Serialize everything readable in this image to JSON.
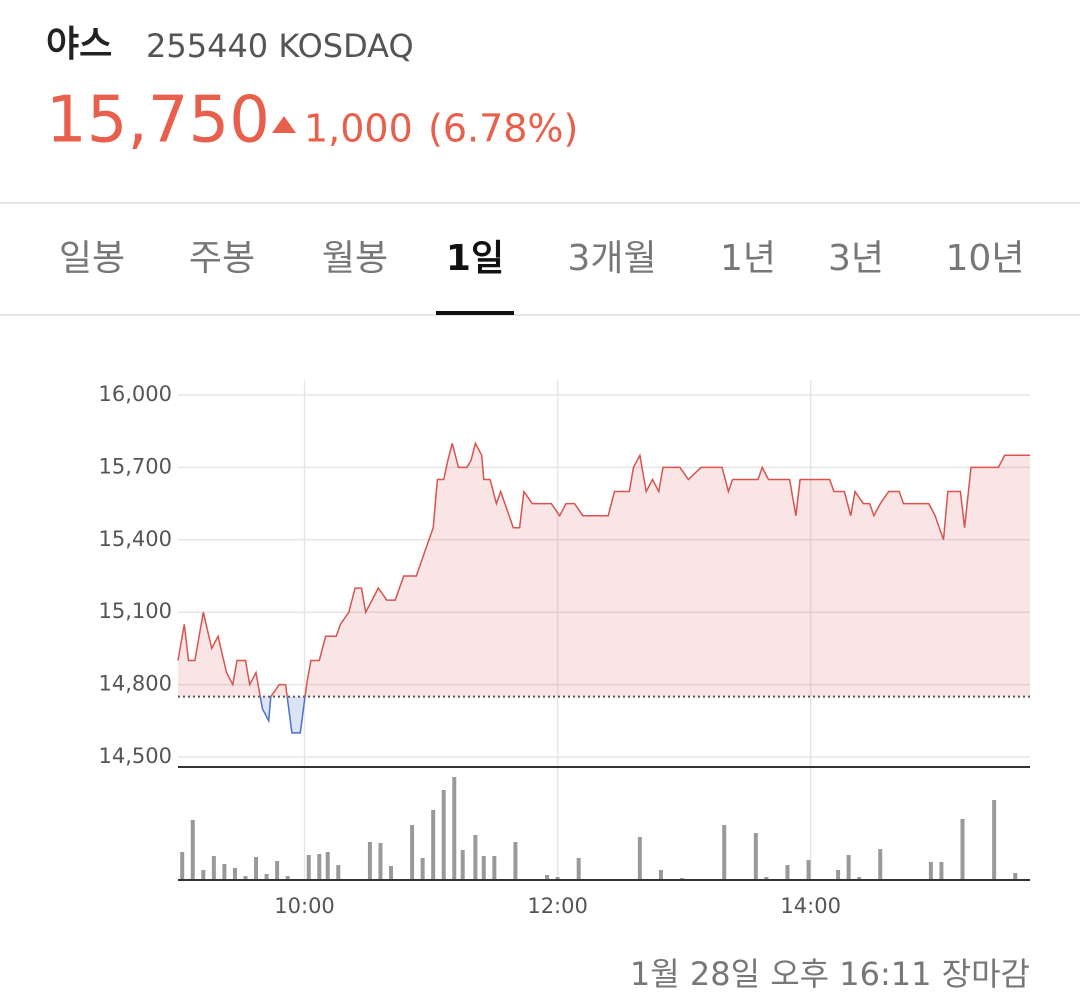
{
  "header": {
    "name": "야스",
    "code": "255440 KOSDAQ",
    "price": "15,750",
    "change": "1,000",
    "change_pct": "(6.78%)"
  },
  "tabs": [
    "일봉",
    "주봉",
    "월봉",
    "1일",
    "3개월",
    "1년",
    "3년",
    "10년"
  ],
  "active_tab": 3,
  "footer": "1월 28일 오후 16:11 장마감",
  "chart_data": [
    {
      "type": "line",
      "xlim": [
        "09:00",
        "15:44"
      ],
      "xticks": [
        "10:00",
        "12:00",
        "14:00"
      ],
      "ylim": [
        14500,
        16000
      ],
      "yticks": [
        {
          "value": 14500,
          "label": "14,500"
        },
        {
          "value": 14800,
          "label": "14,800"
        },
        {
          "value": 15100,
          "label": "15,100"
        },
        {
          "value": 15400,
          "label": "15,400"
        },
        {
          "value": 15700,
          "label": "15,700"
        },
        {
          "value": 16000,
          "label": "16,000"
        }
      ],
      "grid": true,
      "baseline": 14750,
      "series": [
        {
          "color": "#d9534f",
          "below_color": "#4a72c9",
          "x": [
            "09:00",
            "09:03",
            "09:05",
            "09:08",
            "09:12",
            "09:16",
            "09:19",
            "09:23",
            "09:26",
            "09:28",
            "09:32",
            "09:34",
            "09:37",
            "09:40",
            "09:43",
            "09:44",
            "09:48",
            "09:51",
            "09:54",
            "09:58",
            "10:01",
            "10:03",
            "10:07",
            "10:10",
            "10:15",
            "10:17",
            "10:21",
            "10:24",
            "10:27",
            "10:29",
            "10:32",
            "10:35",
            "10:39",
            "10:43",
            "10:47",
            "10:53",
            "10:57",
            "11:01",
            "11:03",
            "11:06",
            "11:08",
            "11:10",
            "11:13",
            "11:17",
            "11:19",
            "11:21",
            "11:24",
            "11:25",
            "11:28",
            "11:31",
            "11:33",
            "11:35",
            "11:39",
            "11:42",
            "11:44",
            "11:48",
            "11:57",
            "12:01",
            "12:04",
            "12:08",
            "12:12",
            "12:24",
            "12:27",
            "12:34",
            "12:36",
            "12:39",
            "12:42",
            "12:45",
            "12:48",
            "12:50",
            "12:58",
            "13:02",
            "13:08",
            "13:18",
            "13:21",
            "13:23",
            "13:35",
            "13:37",
            "13:40",
            "13:50",
            "13:53",
            "13:55",
            "14:09",
            "14:11",
            "14:16",
            "14:19",
            "14:21",
            "14:25",
            "14:28",
            "14:30",
            "14:33",
            "14:37",
            "14:42",
            "14:44",
            "14:56",
            "14:59",
            "15:03",
            "15:05",
            "15:11",
            "15:13",
            "15:16",
            "15:29",
            "15:32",
            "15:44"
          ],
          "values": [
            14900,
            15050,
            14900,
            14900,
            15100,
            14950,
            15000,
            14850,
            14800,
            14900,
            14900,
            14800,
            14850,
            14700,
            14650,
            14750,
            14800,
            14800,
            14600,
            14600,
            14800,
            14900,
            14900,
            15000,
            15000,
            15050,
            15100,
            15200,
            15200,
            15100,
            15150,
            15200,
            15150,
            15150,
            15250,
            15250,
            15350,
            15450,
            15650,
            15650,
            15730,
            15800,
            15700,
            15700,
            15730,
            15800,
            15750,
            15650,
            15650,
            15550,
            15600,
            15550,
            15450,
            15450,
            15600,
            15550,
            15550,
            15500,
            15550,
            15550,
            15500,
            15500,
            15600,
            15600,
            15700,
            15750,
            15600,
            15650,
            15600,
            15700,
            15700,
            15650,
            15700,
            15700,
            15600,
            15650,
            15650,
            15700,
            15650,
            15650,
            15500,
            15650,
            15650,
            15600,
            15600,
            15500,
            15600,
            15550,
            15550,
            15500,
            15550,
            15600,
            15600,
            15550,
            15550,
            15500,
            15400,
            15600,
            15600,
            15450,
            15700,
            15700,
            15750,
            15750
          ]
        }
      ]
    },
    {
      "type": "bar",
      "xlim": [
        "09:00",
        "15:44"
      ],
      "ylim": [
        0,
        110
      ],
      "color": "#999999",
      "x": [
        "09:02",
        "09:07",
        "09:12",
        "09:17",
        "09:22",
        "09:27",
        "09:32",
        "09:37",
        "09:42",
        "09:47",
        "09:52",
        "10:02",
        "10:07",
        "10:11",
        "10:16",
        "10:31",
        "10:36",
        "10:41",
        "10:51",
        "10:56",
        "11:01",
        "11:06",
        "11:11",
        "11:15",
        "11:21",
        "11:25",
        "11:30",
        "11:40",
        "11:55",
        "12:00",
        "12:10",
        "12:39",
        "12:49",
        "12:59",
        "13:19",
        "13:34",
        "13:39",
        "13:49",
        "13:59",
        "14:13",
        "14:18",
        "14:23",
        "14:33",
        "14:57",
        "15:02",
        "15:12",
        "15:27",
        "15:37"
      ],
      "values": [
        28,
        60,
        10,
        24,
        16,
        12,
        4,
        23,
        6,
        19,
        4,
        25,
        26,
        28,
        15,
        38,
        37,
        14,
        55,
        22,
        70,
        90,
        103,
        30,
        45,
        24,
        24,
        38,
        5,
        3,
        22,
        43,
        10,
        2,
        55,
        47,
        3,
        15,
        20,
        10,
        25,
        3,
        31,
        18,
        18,
        61,
        80,
        7
      ]
    }
  ]
}
